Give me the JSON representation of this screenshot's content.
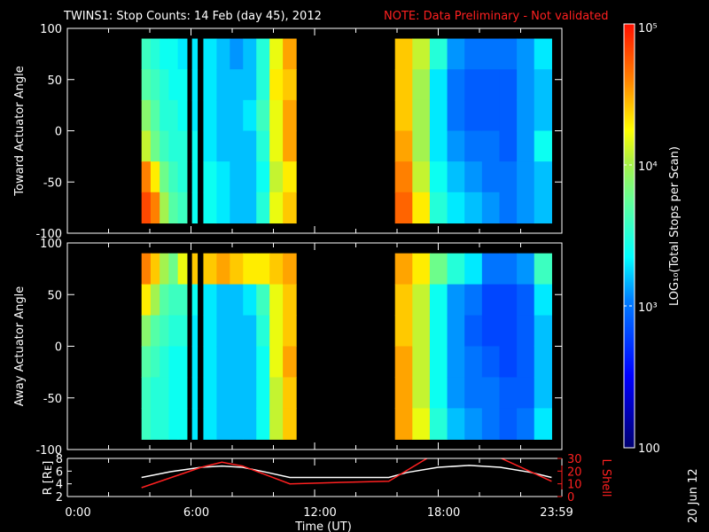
{
  "title": "TWINS1: Stop Counts: 14 Feb (day  45), 2012",
  "note": "NOTE: Data Preliminary - Not validated",
  "date_stamp": "20 Jun 12",
  "colors": {
    "note": "#ff2020",
    "r_line": "#ffffff",
    "lshell_line": "#ff2020"
  },
  "chart_data": [
    {
      "type": "heatmap",
      "ylabel": "Toward Actuator Angle",
      "ylim": [
        -100,
        100
      ],
      "yticks": [
        "100",
        "50",
        "0",
        "-50",
        "-100"
      ],
      "angle_bins": [
        90,
        60,
        30,
        0,
        -30,
        -60,
        -90
      ],
      "value_unit": "log10 counts",
      "segments": [
        {
          "t": [
            3.6,
            5.8
          ],
          "cols": [
            [
              3.6,
              3.7,
              3.9,
              4.1,
              4.6,
              4.8
            ],
            [
              3.5,
              3.6,
              3.7,
              3.8,
              4.3,
              4.6
            ],
            [
              3.4,
              3.5,
              3.5,
              3.6,
              3.8,
              4.0
            ],
            [
              3.4,
              3.4,
              3.5,
              3.5,
              3.6,
              3.7
            ],
            [
              3.3,
              3.4,
              3.4,
              3.5,
              3.5,
              3.6
            ]
          ]
        },
        {
          "t": [
            6.05,
            6.3
          ],
          "cols": [
            [
              3.3,
              3.3,
              3.3,
              3.4,
              3.4,
              3.4
            ]
          ]
        },
        {
          "t": [
            6.6,
            11.1
          ],
          "cols": [
            [
              3.3,
              3.3,
              3.3,
              3.3,
              3.4,
              3.4
            ],
            [
              3.2,
              3.2,
              3.2,
              3.2,
              3.3,
              3.3
            ],
            [
              3.1,
              3.2,
              3.2,
              3.2,
              3.2,
              3.2
            ],
            [
              3.2,
              3.2,
              3.3,
              3.2,
              3.2,
              3.2
            ],
            [
              3.5,
              3.5,
              3.6,
              3.5,
              3.4,
              3.5
            ],
            [
              4.2,
              4.3,
              4.2,
              4.2,
              4.1,
              4.2
            ],
            [
              4.5,
              4.4,
              4.5,
              4.5,
              4.3,
              4.4
            ]
          ]
        },
        {
          "t": [
            15.9,
            23.5
          ],
          "cols": [
            [
              4.4,
              4.4,
              4.4,
              4.5,
              4.6,
              4.7
            ],
            [
              4.1,
              4.0,
              4.0,
              4.0,
              4.1,
              4.3
            ],
            [
              3.5,
              3.3,
              3.3,
              3.3,
              3.4,
              3.5
            ],
            [
              3.1,
              3.0,
              3.0,
              3.1,
              3.2,
              3.3
            ],
            [
              3.0,
              2.9,
              2.9,
              3.0,
              3.1,
              3.2
            ],
            [
              3.0,
              2.9,
              2.9,
              3.0,
              3.0,
              3.1
            ],
            [
              3.0,
              2.9,
              2.9,
              2.9,
              3.0,
              3.0
            ],
            [
              3.1,
              3.1,
              3.1,
              3.1,
              3.1,
              3.1
            ],
            [
              3.3,
              3.2,
              3.2,
              3.4,
              3.2,
              3.2
            ]
          ]
        }
      ]
    },
    {
      "type": "heatmap",
      "ylabel": "Away Actuator Angle",
      "ylim": [
        -100,
        100
      ],
      "yticks": [
        "100",
        "50",
        "0",
        "-50",
        "-100"
      ],
      "angle_bins": [
        90,
        60,
        30,
        0,
        -30,
        -60,
        -90
      ],
      "value_unit": "log10 counts",
      "segments": [
        {
          "t": [
            3.6,
            5.8
          ],
          "cols": [
            [
              4.6,
              4.3,
              3.9,
              3.7,
              3.6,
              3.6
            ],
            [
              4.4,
              4.0,
              3.7,
              3.6,
              3.5,
              3.5
            ],
            [
              4.0,
              3.7,
              3.6,
              3.5,
              3.5,
              3.5
            ],
            [
              3.8,
              3.6,
              3.5,
              3.4,
              3.4,
              3.4
            ],
            [
              4.2,
              3.6,
              3.5,
              3.4,
              3.4,
              3.4
            ]
          ]
        },
        {
          "t": [
            6.05,
            6.3
          ],
          "cols": [
            [
              4.4,
              3.4,
              3.3,
              3.3,
              3.3,
              3.3
            ]
          ]
        },
        {
          "t": [
            6.6,
            11.1
          ],
          "cols": [
            [
              4.4,
              3.3,
              3.3,
              3.3,
              3.3,
              3.3
            ],
            [
              4.5,
              3.2,
              3.2,
              3.2,
              3.2,
              3.2
            ],
            [
              4.4,
              3.2,
              3.2,
              3.2,
              3.2,
              3.2
            ],
            [
              4.3,
              3.3,
              3.2,
              3.2,
              3.2,
              3.2
            ],
            [
              4.3,
              3.6,
              3.5,
              3.4,
              3.4,
              3.4
            ],
            [
              4.4,
              4.2,
              4.2,
              4.2,
              4.1,
              4.1
            ],
            [
              4.5,
              4.4,
              4.4,
              4.5,
              4.4,
              4.4
            ]
          ]
        },
        {
          "t": [
            15.9,
            23.5
          ],
          "cols": [
            [
              4.5,
              4.4,
              4.4,
              4.5,
              4.5,
              4.5
            ],
            [
              4.3,
              4.1,
              4.1,
              4.1,
              4.1,
              4.2
            ],
            [
              3.8,
              3.4,
              3.4,
              3.4,
              3.4,
              3.5
            ],
            [
              3.5,
              3.1,
              3.1,
              3.1,
              3.1,
              3.2
            ],
            [
              3.3,
              3.0,
              2.9,
              3.0,
              3.0,
              3.1
            ],
            [
              3.0,
              2.8,
              2.8,
              2.9,
              3.0,
              3.0
            ],
            [
              3.0,
              2.8,
              2.8,
              2.8,
              2.9,
              2.9
            ],
            [
              3.1,
              2.9,
              2.9,
              2.9,
              2.9,
              3.0
            ],
            [
              3.6,
              3.3,
              3.2,
              3.2,
              3.2,
              3.3
            ]
          ]
        }
      ]
    },
    {
      "type": "line",
      "xlabel": "Time (UT)",
      "xticks": [
        "0:00",
        "6:00",
        "12:00",
        "18:00",
        "23:59"
      ],
      "xlim": [
        0,
        24
      ],
      "ylabel": "R [Rᴇ]",
      "ylim": [
        2,
        8
      ],
      "yticks": [
        "8",
        "6",
        "4",
        "2"
      ],
      "y2label": "L Shell",
      "y2lim": [
        0,
        30
      ],
      "y2ticks": [
        "30",
        "20",
        "10",
        "0"
      ],
      "series": [
        {
          "axis": "left",
          "x": [
            3.6,
            5.0,
            6.5,
            7.5,
            8.5,
            9.7,
            10.8,
            15.6,
            16.5,
            18.0,
            19.5,
            21.0,
            22.5,
            23.5
          ],
          "y": [
            5.0,
            5.9,
            6.6,
            6.8,
            6.6,
            5.8,
            5.0,
            5.0,
            5.8,
            6.6,
            6.9,
            6.6,
            5.8,
            5.0
          ]
        },
        {
          "axis": "right",
          "x": [
            3.6,
            6.5,
            7.5,
            8.5,
            10.8,
            13.0,
            15.6,
            17.5,
            21.0,
            23.5
          ],
          "y": [
            7,
            23,
            27,
            24,
            10,
            11,
            12,
            30.5,
            30.5,
            12
          ]
        }
      ]
    }
  ],
  "colorbar": {
    "label": "LOG₁₀(Total Stops per Scan)",
    "ticks": [
      "10⁵",
      "10⁴",
      "10³",
      "100"
    ],
    "range_log10": [
      2,
      5
    ]
  }
}
